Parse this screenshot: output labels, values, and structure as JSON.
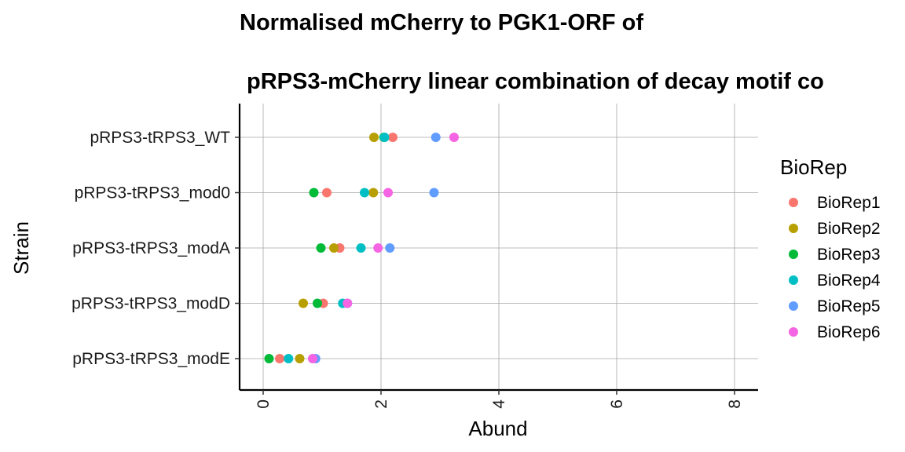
{
  "chart_data": {
    "type": "scatter",
    "title_line1": "Normalised mCherry to PGK1-ORF of",
    "title_line2": "pRPS3-mCherry linear combination of decay motif co",
    "xlabel": "Abund",
    "ylabel": "Strain",
    "xlim": [
      -0.4,
      8.4
    ],
    "x_ticks": [
      "0",
      "2",
      "4",
      "6",
      "8"
    ],
    "categories": [
      "pRPS3-tRPS3_WT",
      "pRPS3-tRPS3_mod0",
      "pRPS3-tRPS3_modA",
      "pRPS3-tRPS3_modD",
      "pRPS3-tRPS3_modE"
    ],
    "grid": true,
    "legend": {
      "title": "BioRep",
      "position": "right"
    },
    "series": [
      {
        "name": "BioRep1",
        "color": "#F8766D",
        "values": [
          2.2,
          1.08,
          1.3,
          1.02,
          0.28
        ]
      },
      {
        "name": "BioRep2",
        "color": "#B79F00",
        "values": [
          1.88,
          1.87,
          1.2,
          0.68,
          0.62
        ]
      },
      {
        "name": "BioRep3",
        "color": "#00BA38",
        "values": [
          2.05,
          0.86,
          0.98,
          0.92,
          0.1
        ]
      },
      {
        "name": "BioRep4",
        "color": "#00BFC4",
        "values": [
          2.06,
          1.72,
          1.66,
          1.35,
          0.43
        ]
      },
      {
        "name": "BioRep5",
        "color": "#619CFF",
        "values": [
          2.93,
          2.9,
          2.15,
          1.43,
          0.89
        ]
      },
      {
        "name": "BioRep6",
        "color": "#F564E3",
        "values": [
          3.24,
          2.12,
          1.95,
          1.43,
          0.84
        ]
      }
    ]
  }
}
